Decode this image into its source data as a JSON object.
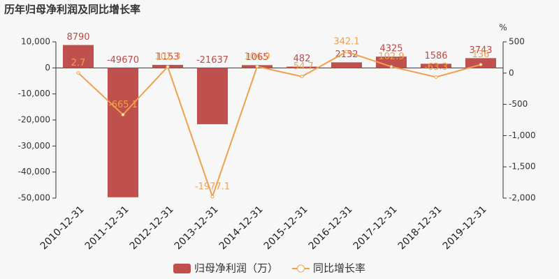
{
  "chart_data": {
    "type": "bar-line",
    "title": "历年归母净利润及同比增长率",
    "y2_unit": "%",
    "categories": [
      "2010-12-31",
      "2011-12-31",
      "2012-12-31",
      "2013-12-31",
      "2014-12-31",
      "2015-12-31",
      "2016-12-31",
      "2017-12-31",
      "2018-12-31",
      "2019-12-31"
    ],
    "series": [
      {
        "name": "归母净利润（万）",
        "type": "bar",
        "color": "#c0504d",
        "values": [
          8790,
          -49670,
          1153,
          -21637,
          1065,
          482,
          2132,
          4325,
          1586,
          3743
        ]
      },
      {
        "name": "同比增长率",
        "type": "line",
        "axis": "y2",
        "color": "#f0a04b",
        "values": [
          2.7,
          -665.1,
          102.3,
          -1977.1,
          104.9,
          -54.7,
          342.1,
          102.9,
          -63.3,
          136
        ]
      }
    ],
    "ylim": [
      -50000,
      10000
    ],
    "yticks": [
      {
        "value": 10000,
        "label": "10,000"
      },
      0,
      {
        "value": -10000,
        "label": "-10,000"
      },
      {
        "value": -20000,
        "label": "-20,000"
      },
      {
        "value": -30000,
        "label": "-30,000"
      },
      {
        "value": -40000,
        "label": "-40,000"
      },
      {
        "value": -50000,
        "label": "-50,000"
      }
    ],
    "y2lim": [
      -2000,
      500
    ],
    "y2ticks": [
      500,
      0,
      -500,
      {
        "value": -1000,
        "label": "-1,000"
      },
      {
        "value": -1500,
        "label": "-1,500"
      },
      {
        "value": -2000,
        "label": "-2,000"
      }
    ]
  }
}
